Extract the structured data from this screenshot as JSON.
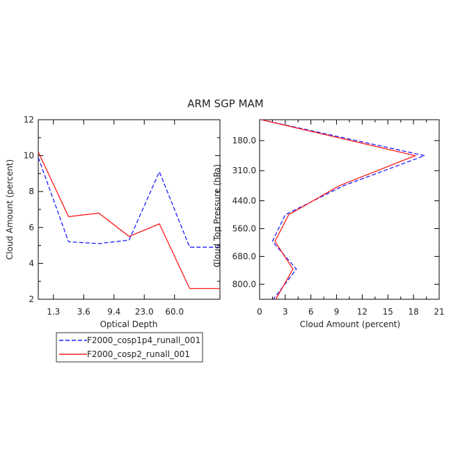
{
  "title": "ARM SGP MAM",
  "colors": {
    "series1": "#1a1aff",
    "series2": "#ff1a1a"
  },
  "legend": {
    "entries": [
      "F2000_cosp1p4_runall_001",
      "F2000_cosp2_runall_001"
    ]
  },
  "chart_data": [
    {
      "type": "line",
      "xlabel": "Optical Depth",
      "ylabel": "Cloud Amount (percent)",
      "x_tick_labels": [
        "1.3",
        "3.6",
        "9.4",
        "23.0",
        "60.0"
      ],
      "x_categories": [
        1,
        2,
        3,
        4,
        5,
        6,
        7
      ],
      "y_ticks": [
        "2",
        "4",
        "6",
        "8",
        "10",
        "12"
      ],
      "ylim": [
        2,
        12
      ],
      "series": [
        {
          "name": "F2000_cosp1p4_runall_001",
          "style": "dashed",
          "values": [
            9.9,
            5.2,
            5.1,
            5.3,
            9.1,
            4.9,
            4.9
          ]
        },
        {
          "name": "F2000_cosp2_runall_001",
          "style": "solid",
          "values": [
            10.2,
            6.6,
            6.8,
            5.5,
            6.2,
            2.6,
            2.6
          ]
        }
      ]
    },
    {
      "type": "line",
      "xlabel": "Cloud Amount (percent)",
      "ylabel": "Cloud Top Pressure (hPa)",
      "x_ticks": [
        "0",
        "3",
        "6",
        "9",
        "12",
        "15",
        "18",
        "21"
      ],
      "xlim": [
        0,
        21
      ],
      "y_tick_labels": [
        "180.0",
        "310.0",
        "440.0",
        "560.0",
        "680.0",
        "800.0"
      ],
      "ylim": [
        90,
        865
      ],
      "series": [
        {
          "name": "F2000_cosp1p4_runall_001",
          "style": "dashed",
          "pressure": [
            90,
            245,
            375,
            500,
            615,
            735,
            865
          ],
          "values": [
            0.2,
            19.3,
            9.8,
            3.0,
            1.5,
            4.3,
            1.6
          ]
        },
        {
          "name": "F2000_cosp2_runall_001",
          "style": "solid",
          "pressure": [
            90,
            245,
            375,
            500,
            615,
            735,
            865
          ],
          "values": [
            0.2,
            18.2,
            9.3,
            3.4,
            1.8,
            3.9,
            1.9
          ]
        }
      ]
    }
  ]
}
